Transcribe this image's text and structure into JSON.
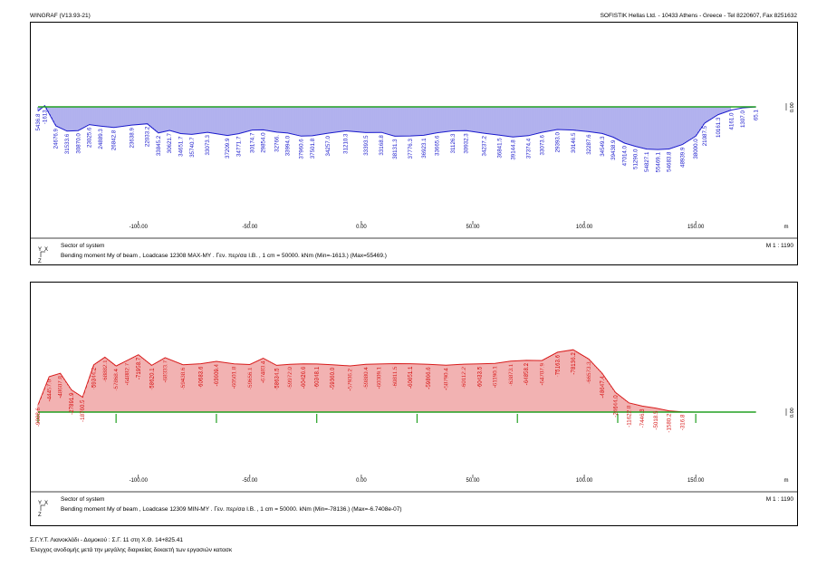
{
  "header": {
    "left": "WINGRAF (V13.93-21)",
    "right": "SOFISTIK Hellas Ltd. - 10433 Athens - Greece - Tel 8220607, Fax 8251632"
  },
  "footer": {
    "line1": "Σ.Γ.Υ.Τ. Λιανοκλάδι - Δομοκού : Σ.Γ. 11 στη Χ.Θ. 14+825.41",
    "line2": "Έλεγχος ανοδομής μετά την μεγάλης διαρκείας δεκαετή των εργασιών κατασκ"
  },
  "chart_data": [
    {
      "type": "area",
      "panel": "top",
      "title": "Bending moment My of beam , Loadcase 12308 MAX-MY . Γεν. περ/σα I.B. , 1 cm = 50000. kNm (Min=-1613.) (Max=55469.)",
      "sector_label": "Sector of system",
      "scale": "M 1 : 1190",
      "xlabel": "m",
      "ytick": "0.00",
      "xticks": [
        "-100.00",
        "-50.00",
        "0.00",
        "50.00",
        "100.00",
        "150.00"
      ],
      "xtick_values": [
        -100,
        -50,
        0,
        50,
        100,
        150
      ],
      "xlim": [
        -145,
        180
      ],
      "series_color": "#1a1acc",
      "axis_color": "#22a022",
      "x": [
        -145,
        -142,
        -137,
        -132,
        -127,
        -122,
        -117,
        -111,
        -103,
        -96,
        -91,
        -86,
        -81,
        -76,
        -69,
        -60,
        -55,
        -49,
        -44,
        -38,
        -33,
        -27,
        -22,
        -15,
        -7,
        2,
        9,
        15,
        22,
        28,
        34,
        41,
        47,
        55,
        62,
        68,
        75,
        81,
        88,
        95,
        102,
        108,
        113,
        118,
        123,
        128,
        133,
        138,
        144,
        150,
        154,
        160,
        166,
        171,
        177
      ],
      "values": [
        5436.8,
        -1613,
        24676.9,
        31533.6,
        30870.0,
        23025.6,
        24889.3,
        26842.8,
        23638.9,
        22033.2,
        33845.2,
        30621.7,
        34651.7,
        35740.7,
        33073.3,
        37209.9,
        34771.7,
        30174.7,
        29854.0,
        32766.0,
        33994.0,
        37960.6,
        37501.8,
        34257.0,
        31210.3,
        33393.5,
        33168.8,
        38131.3,
        37776.3,
        36923.1,
        33665.6,
        31126.3,
        30932.3,
        34237.2,
        36841.5,
        39144.8,
        37374.4,
        33073.6,
        29393.0,
        30146.5,
        32287.6,
        34549.3,
        39438.9,
        47014.0,
        51290.0,
        54827.1,
        55469.1,
        54683.8,
        48939.9,
        38000.0,
        21087.5,
        10161.3,
        4161.0,
        1307.0,
        65.1
      ],
      "labels": [
        "5436.8",
        "-1613.",
        "24676.9",
        "31533.6",
        "30870.0",
        "23025.6",
        "24889.3",
        "26842.8",
        "23638.9",
        "22033.2",
        "33845.2",
        "30621.7",
        "34651.7",
        "35740.7",
        "33073.3",
        "37209.9",
        "34771.7",
        "30174.7",
        "29854.0",
        "32766.",
        "33994.0",
        "37960.6",
        "37501.8",
        "34257.0",
        "31210.3",
        "33393.5",
        "33168.8",
        "38131.3",
        "37776.3",
        "36923.1",
        "33665.6",
        "31126.3",
        "30932.3",
        "34237.2",
        "36841.5",
        "39144.8",
        "37374.4",
        "33073.6",
        "29393.0",
        "30146.5",
        "32287.6",
        "34549.3",
        "39438.9",
        "47014.0",
        "51290.0",
        "54827.1",
        "55469.1",
        "54683.8",
        "48939.9",
        "38000.0",
        "21087.5",
        "10161.3",
        "4161.0",
        "1307.0",
        "65.1"
      ]
    },
    {
      "type": "area",
      "panel": "bottom",
      "title": "Bending moment My of beam , Loadcase 12309 MIN-MY . Γεν. περ/σα I.B. , 1 cm = 50000. kNm (Min=-78136.) (Max=-6.7408e-07)",
      "sector_label": "Sector of system",
      "scale": "M 1 : 1190",
      "xlabel": "m",
      "ytick": "0.00",
      "xticks": [
        "-100.00",
        "-50.00",
        "0.00",
        "50.00",
        "100.00",
        "150.00"
      ],
      "xtick_values": [
        -100,
        -50,
        0,
        50,
        100,
        150
      ],
      "xlim": [
        -145,
        180
      ],
      "series_color": "#d81c1c",
      "axis_color": "#22a022",
      "x": [
        -145,
        -140,
        -135,
        -130,
        -125,
        -120,
        -115,
        -110,
        -105,
        -100,
        -94,
        -88,
        -80,
        -72,
        -65,
        -57,
        -50,
        -44,
        -38,
        -32,
        -26,
        -20,
        -13,
        -5,
        2,
        8,
        15,
        22,
        30,
        38,
        46,
        53,
        60,
        67,
        74,
        81,
        88,
        95,
        102,
        108,
        114,
        120,
        126,
        132,
        138,
        144,
        150,
        155,
        160,
        166,
        171,
        177
      ],
      "values": [
        -9088.6,
        -44457.0,
        -48607.8,
        -27891.9,
        -18760.5,
        -59344.2,
        -68882.1,
        -57868.4,
        -64882.7,
        -71958.7,
        -58620.1,
        -68333.7,
        -59438.6,
        -60683.6,
        -63609.4,
        -60501.8,
        -59656.1,
        -67483.4,
        -58634.5,
        -59972.0,
        -60426.6,
        -60348.1,
        -59360.0,
        -57936.2,
        -59880.4,
        -60309.1,
        -60811.5,
        -60651.1,
        -59866.6,
        -58790.4,
        -60112.2,
        -60433.5,
        -61190.1,
        -63873.1,
        -64858.2,
        -64707.9,
        -75163.6,
        -78136.2,
        -66573.3,
        -48647.4,
        -24644.0,
        -11622.8,
        -7446.3,
        -5018.5,
        -1580.2,
        -316.8,
        0,
        0,
        0,
        0,
        0,
        0
      ],
      "labels": [
        "-9088.6",
        "-44457.0",
        "-48607.8",
        "-27891.9",
        "-18760.5",
        "-59344.2",
        "-68882.1",
        "-57868.4",
        "-64882.7",
        "-71958.7",
        "-58620.1",
        "-68333.7",
        "-59438.6",
        "-60683.6",
        "-63609.4",
        "-60501.8",
        "-59656.1",
        "-67483.4",
        "-58634.5",
        "-59972.0",
        "-60426.6",
        "-60348.1",
        "-59360.0",
        "-57936.2",
        "-59880.4",
        "-60309.1",
        "-60811.5",
        "-60651.1",
        "-59866.6",
        "-58790.4",
        "-60112.2",
        "-60433.5",
        "-61190.1",
        "-63873.1",
        "-64858.2",
        "-64707.9",
        "-75163.6",
        "-78136.2",
        "-66573.3",
        "-48647.4",
        "-24644.0",
        "-11622.8",
        "-7446.3",
        "-5018.5",
        "-1580.2",
        "-316.8",
        "",
        "",
        "",
        "",
        "",
        ""
      ],
      "supports": [
        -145,
        -110,
        -65,
        -20,
        25,
        70,
        115,
        150
      ]
    }
  ],
  "axes_glyphs": {
    "y": "Y",
    "x": "X",
    "z": "Z"
  }
}
